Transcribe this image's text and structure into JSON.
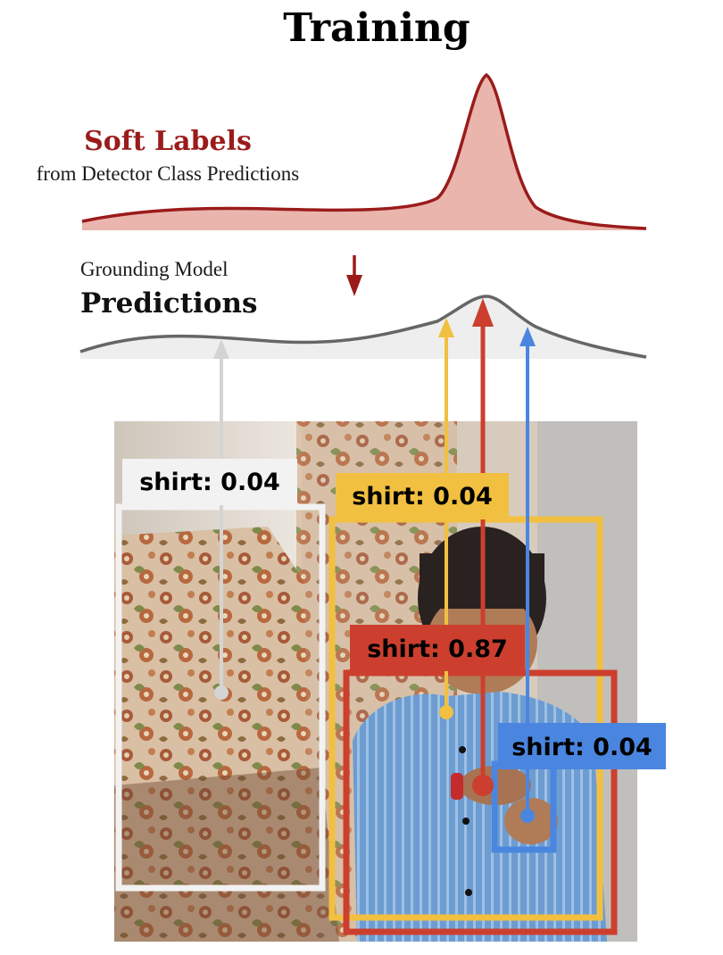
{
  "title": "Training",
  "soft_labels": {
    "heading": "Soft Labels",
    "subheading": "from Detector Class Predictions",
    "color": "#9b1b1b"
  },
  "grounding": {
    "subheading": "Grounding Model",
    "heading": "Predictions"
  },
  "boxes": [
    {
      "id": "white",
      "label": "shirt: 0.04",
      "color": "#f2f2f2"
    },
    {
      "id": "yellow",
      "label": "shirt: 0.04",
      "color": "#f2c040"
    },
    {
      "id": "red",
      "label": "shirt: 0.87",
      "color": "#cc3f2e"
    },
    {
      "id": "blue",
      "label": "shirt: 0.04",
      "color": "#4a86e0"
    }
  ]
}
